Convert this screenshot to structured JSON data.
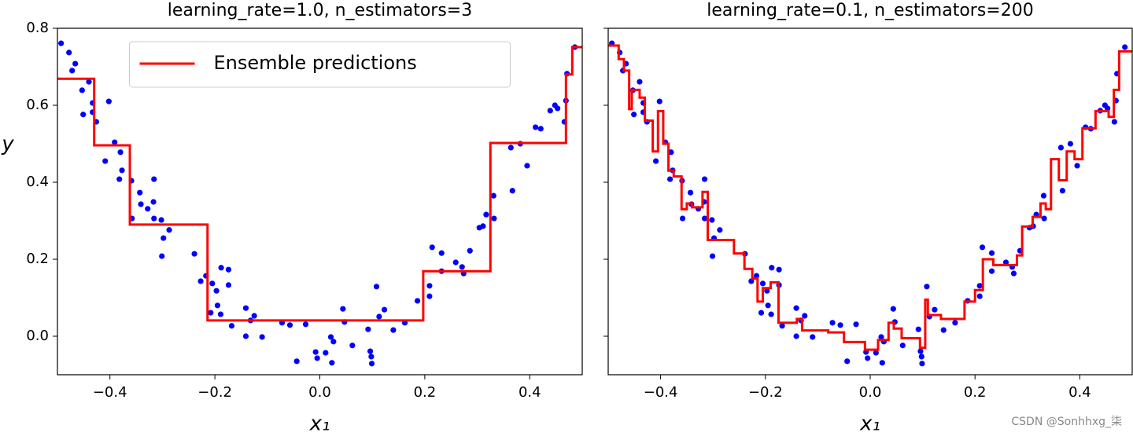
{
  "chart_data": [
    {
      "type": "scatter_line",
      "title": "learning_rate=1.0, n_estimators=3",
      "xlabel": "x₁",
      "ylabel": "y",
      "xlim": [
        -0.5,
        0.5
      ],
      "ylim": [
        -0.1,
        0.8
      ],
      "xticks": [
        {
          "value": -0.4,
          "label": "−0.4"
        },
        {
          "value": -0.2,
          "label": "−0.2"
        },
        {
          "value": 0,
          "label": "0.0"
        },
        0.2,
        0.4
      ],
      "yticks": [
        {
          "value": 0,
          "label": "0.0"
        },
        0.2,
        0.4,
        0.6,
        0.8
      ],
      "show_ytick_labels": true,
      "legend": "upper center",
      "scatter": {
        "color": "#0000ff",
        "x": [
          -0.493,
          -0.478,
          -0.472,
          -0.466,
          -0.453,
          -0.451,
          -0.44,
          -0.433,
          -0.433,
          -0.426,
          -0.409,
          -0.402,
          -0.391,
          -0.38,
          -0.377,
          -0.382,
          -0.359,
          -0.343,
          -0.341,
          -0.358,
          -0.328,
          -0.317,
          -0.316,
          -0.316,
          -0.302,
          -0.298,
          -0.287,
          -0.301,
          -0.239,
          -0.227,
          -0.217,
          -0.205,
          -0.197,
          -0.195,
          -0.189,
          -0.208,
          -0.188,
          -0.174,
          -0.174,
          -0.168,
          -0.141,
          -0.141,
          -0.132,
          -0.125,
          -0.11,
          -0.072,
          -0.057,
          -0.044,
          -0.027,
          -0.008,
          -0.005,
          0.011,
          0.021,
          0.023,
          0.026,
          0.044,
          0.047,
          0.062,
          0.092,
          0.096,
          0.098,
          0.099,
          0.108,
          0.113,
          0.123,
          0.14,
          0.162,
          0.186,
          0.209,
          0.209,
          0.214,
          0.232,
          0.232,
          0.259,
          0.271,
          0.274,
          0.286,
          0.304,
          0.311,
          0.317,
          0.331,
          0.332,
          0.367,
          0.364,
          0.382,
          0.395,
          0.411,
          0.421,
          0.439,
          0.448,
          0.453,
          0.466,
          0.469,
          0.471,
          0.486
        ],
        "y": [
          0.761,
          0.737,
          0.69,
          0.708,
          0.639,
          0.576,
          0.661,
          0.606,
          0.582,
          0.557,
          0.455,
          0.61,
          0.504,
          0.478,
          0.431,
          0.408,
          0.404,
          0.373,
          0.343,
          0.306,
          0.331,
          0.349,
          0.408,
          0.306,
          0.302,
          0.255,
          0.276,
          0.208,
          0.214,
          0.143,
          0.157,
          0.137,
          0.118,
          0.08,
          0.057,
          0.061,
          0.178,
          0.173,
          0.133,
          0.027,
          0.073,
          0.0,
          0.041,
          0.053,
          -0.002,
          0.035,
          0.029,
          -0.065,
          0.031,
          -0.041,
          -0.057,
          -0.043,
          -0.002,
          -0.069,
          -0.014,
          0.071,
          0.037,
          -0.024,
          0.018,
          -0.039,
          -0.053,
          -0.071,
          0.129,
          0.051,
          0.069,
          0.016,
          0.035,
          0.092,
          0.131,
          0.104,
          0.231,
          0.216,
          0.169,
          0.192,
          0.18,
          0.163,
          0.222,
          0.282,
          0.286,
          0.316,
          0.365,
          0.306,
          0.378,
          0.49,
          0.5,
          0.443,
          0.543,
          0.539,
          0.586,
          0.6,
          0.592,
          0.557,
          0.612,
          0.682,
          0.751
        ]
      },
      "series": [
        {
          "name": "Ensemble predictions",
          "color": "#ff0000",
          "drawstyle": "steps-post",
          "x": [
            -0.5,
            -0.43,
            -0.362,
            -0.214,
            0.197,
            0.325,
            0.469,
            0.481,
            0.5
          ],
          "values": [
            0.669,
            0.496,
            0.29,
            0.041,
            0.169,
            0.502,
            0.68,
            0.751,
            0.751
          ]
        }
      ]
    },
    {
      "type": "scatter_line",
      "title": "learning_rate=0.1, n_estimators=200",
      "xlabel": "x₁",
      "xlim": [
        -0.5,
        0.5
      ],
      "ylim": [
        -0.1,
        0.8
      ],
      "xticks": [
        {
          "value": -0.4,
          "label": "−0.4"
        },
        {
          "value": -0.2,
          "label": "−0.2"
        },
        {
          "value": 0,
          "label": "0.0"
        },
        0.2,
        0.4
      ],
      "yticks": [
        0,
        0.2,
        0.4,
        0.6,
        0.8
      ],
      "show_ytick_labels": false,
      "scatter": {
        "color": "#0000ff",
        "x": [
          -0.493,
          -0.478,
          -0.472,
          -0.466,
          -0.453,
          -0.451,
          -0.44,
          -0.433,
          -0.433,
          -0.426,
          -0.409,
          -0.402,
          -0.391,
          -0.38,
          -0.377,
          -0.382,
          -0.359,
          -0.343,
          -0.341,
          -0.358,
          -0.328,
          -0.317,
          -0.316,
          -0.316,
          -0.302,
          -0.298,
          -0.287,
          -0.301,
          -0.239,
          -0.227,
          -0.217,
          -0.205,
          -0.197,
          -0.195,
          -0.189,
          -0.208,
          -0.188,
          -0.174,
          -0.174,
          -0.168,
          -0.141,
          -0.141,
          -0.132,
          -0.125,
          -0.11,
          -0.072,
          -0.057,
          -0.044,
          -0.027,
          -0.008,
          -0.005,
          0.011,
          0.021,
          0.023,
          0.026,
          0.044,
          0.047,
          0.062,
          0.092,
          0.096,
          0.098,
          0.099,
          0.108,
          0.113,
          0.123,
          0.14,
          0.162,
          0.186,
          0.209,
          0.209,
          0.214,
          0.232,
          0.232,
          0.259,
          0.271,
          0.274,
          0.286,
          0.304,
          0.311,
          0.317,
          0.331,
          0.332,
          0.367,
          0.364,
          0.382,
          0.395,
          0.411,
          0.421,
          0.439,
          0.448,
          0.453,
          0.466,
          0.469,
          0.471,
          0.486
        ],
        "y": [
          0.761,
          0.737,
          0.69,
          0.708,
          0.639,
          0.576,
          0.661,
          0.606,
          0.582,
          0.557,
          0.455,
          0.61,
          0.504,
          0.478,
          0.431,
          0.408,
          0.404,
          0.373,
          0.343,
          0.306,
          0.331,
          0.349,
          0.408,
          0.306,
          0.302,
          0.255,
          0.276,
          0.208,
          0.214,
          0.143,
          0.157,
          0.137,
          0.118,
          0.08,
          0.057,
          0.061,
          0.178,
          0.173,
          0.133,
          0.027,
          0.073,
          0.0,
          0.041,
          0.053,
          -0.002,
          0.035,
          0.029,
          -0.065,
          0.031,
          -0.041,
          -0.057,
          -0.043,
          -0.002,
          -0.069,
          -0.014,
          0.071,
          0.037,
          -0.024,
          0.018,
          -0.039,
          -0.053,
          -0.071,
          0.129,
          0.051,
          0.069,
          0.016,
          0.035,
          0.092,
          0.131,
          0.104,
          0.231,
          0.216,
          0.169,
          0.192,
          0.18,
          0.163,
          0.222,
          0.282,
          0.286,
          0.316,
          0.365,
          0.306,
          0.378,
          0.49,
          0.5,
          0.443,
          0.543,
          0.539,
          0.586,
          0.6,
          0.592,
          0.557,
          0.612,
          0.682,
          0.751
        ]
      },
      "series": [
        {
          "color": "#ff0000",
          "drawstyle": "steps-post",
          "x": [
            -0.5,
            -0.48,
            -0.47,
            -0.46,
            -0.455,
            -0.44,
            -0.43,
            -0.415,
            -0.405,
            -0.395,
            -0.385,
            -0.375,
            -0.36,
            -0.35,
            -0.34,
            -0.32,
            -0.31,
            -0.26,
            -0.24,
            -0.225,
            -0.215,
            -0.205,
            -0.19,
            -0.175,
            -0.14,
            -0.13,
            -0.08,
            -0.05,
            -0.01,
            0.015,
            0.035,
            0.045,
            0.06,
            0.095,
            0.105,
            0.11,
            0.135,
            0.18,
            0.2,
            0.215,
            0.235,
            0.28,
            0.29,
            0.31,
            0.325,
            0.335,
            0.345,
            0.36,
            0.375,
            0.39,
            0.405,
            0.43,
            0.455,
            0.465,
            0.475,
            0.5
          ],
          "values": [
            0.755,
            0.72,
            0.69,
            0.59,
            0.64,
            0.62,
            0.56,
            0.48,
            0.585,
            0.5,
            0.43,
            0.415,
            0.33,
            0.345,
            0.335,
            0.375,
            0.25,
            0.215,
            0.175,
            0.15,
            0.09,
            0.125,
            0.14,
            0.035,
            0.045,
            0.015,
            0.01,
            -0.015,
            -0.035,
            -0.01,
            0.035,
            0.02,
            -0.005,
            -0.03,
            0.095,
            0.055,
            0.045,
            0.09,
            0.12,
            0.2,
            0.185,
            0.21,
            0.285,
            0.31,
            0.345,
            0.33,
            0.46,
            0.405,
            0.48,
            0.46,
            0.54,
            0.585,
            0.57,
            0.64,
            0.74,
            0.74
          ]
        }
      ]
    }
  ],
  "watermark": "CSDN @Sonhhxg_柒"
}
